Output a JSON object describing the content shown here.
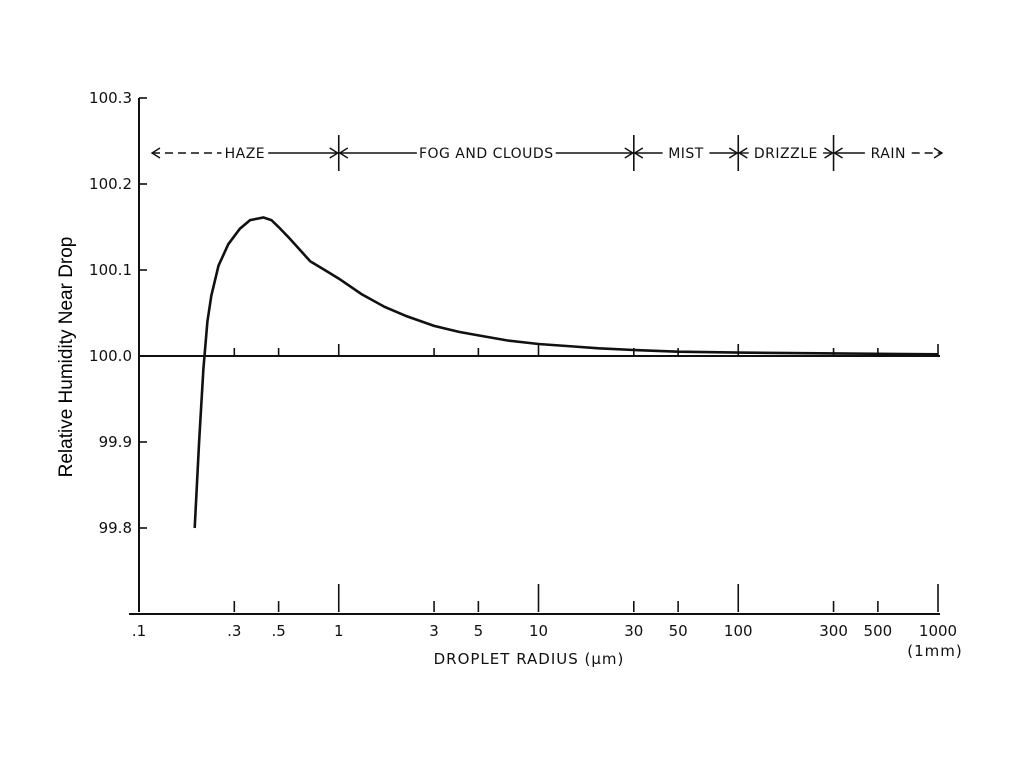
{
  "chart_data": {
    "type": "line",
    "title": "",
    "xlabel": "DROPLET RADIUS (μm)",
    "ylabel": "Relative Humidity Near Drop",
    "x_scale": "log",
    "xlim": [
      0.1,
      1000
    ],
    "ylim": [
      99.7,
      100.3
    ],
    "x_ticks_major": [
      0.1,
      1,
      10,
      100,
      1000
    ],
    "x_ticks_minor": [
      0.3,
      0.5,
      3,
      5,
      30,
      50,
      300,
      500
    ],
    "x_tick_labels": [
      {
        "value": 0.1,
        "label": ".1"
      },
      {
        "value": 0.3,
        "label": ".3"
      },
      {
        "value": 0.5,
        "label": ".5"
      },
      {
        "value": 1,
        "label": "1"
      },
      {
        "value": 3,
        "label": "3"
      },
      {
        "value": 5,
        "label": "5"
      },
      {
        "value": 10,
        "label": "10"
      },
      {
        "value": 30,
        "label": "30"
      },
      {
        "value": 50,
        "label": "50"
      },
      {
        "value": 100,
        "label": "100"
      },
      {
        "value": 300,
        "label": "300"
      },
      {
        "value": 500,
        "label": "500"
      },
      {
        "value": 1000,
        "label": "1000"
      }
    ],
    "x_extra_label": "(1mm)",
    "y_ticks": [
      {
        "value": 99.8,
        "label": "99.8"
      },
      {
        "value": 99.9,
        "label": "99.9"
      },
      {
        "value": 100.0,
        "label": "100.0"
      },
      {
        "value": 100.1,
        "label": "100.1"
      },
      {
        "value": 100.2,
        "label": "100.2"
      },
      {
        "value": 100.3,
        "label": "100.3"
      }
    ],
    "reference_line": 100.0,
    "series": [
      {
        "x": [
          0.19,
          0.2,
          0.21,
          0.22,
          0.23,
          0.25,
          0.28,
          0.32,
          0.36,
          0.42,
          0.46,
          0.5,
          0.56,
          0.63,
          0.72,
          0.85,
          1.0,
          1.3,
          1.7,
          2.2,
          3,
          4,
          5,
          7,
          10,
          15,
          20,
          30,
          50,
          100,
          300,
          1000
        ],
        "y": [
          99.8,
          99.9,
          99.985,
          100.04,
          100.07,
          100.105,
          100.13,
          100.148,
          100.158,
          100.161,
          100.158,
          100.15,
          100.138,
          100.125,
          100.11,
          100.1,
          100.09,
          100.072,
          100.057,
          100.046,
          100.035,
          100.028,
          100.024,
          100.018,
          100.014,
          100.011,
          100.009,
          100.007,
          100.005,
          100.004,
          100.003,
          100.002
        ]
      }
    ],
    "regions": [
      {
        "label": "HAZE",
        "from": 0.1,
        "to": 1
      },
      {
        "label": "FOG AND CLOUDS",
        "from": 1,
        "to": 30
      },
      {
        "label": "MIST",
        "from": 30,
        "to": 100
      },
      {
        "label": "DRIZZLE",
        "from": 100,
        "to": 300
      },
      {
        "label": "RAIN",
        "from": 300,
        "to": 1000
      }
    ],
    "grid": false,
    "legend": "none"
  }
}
